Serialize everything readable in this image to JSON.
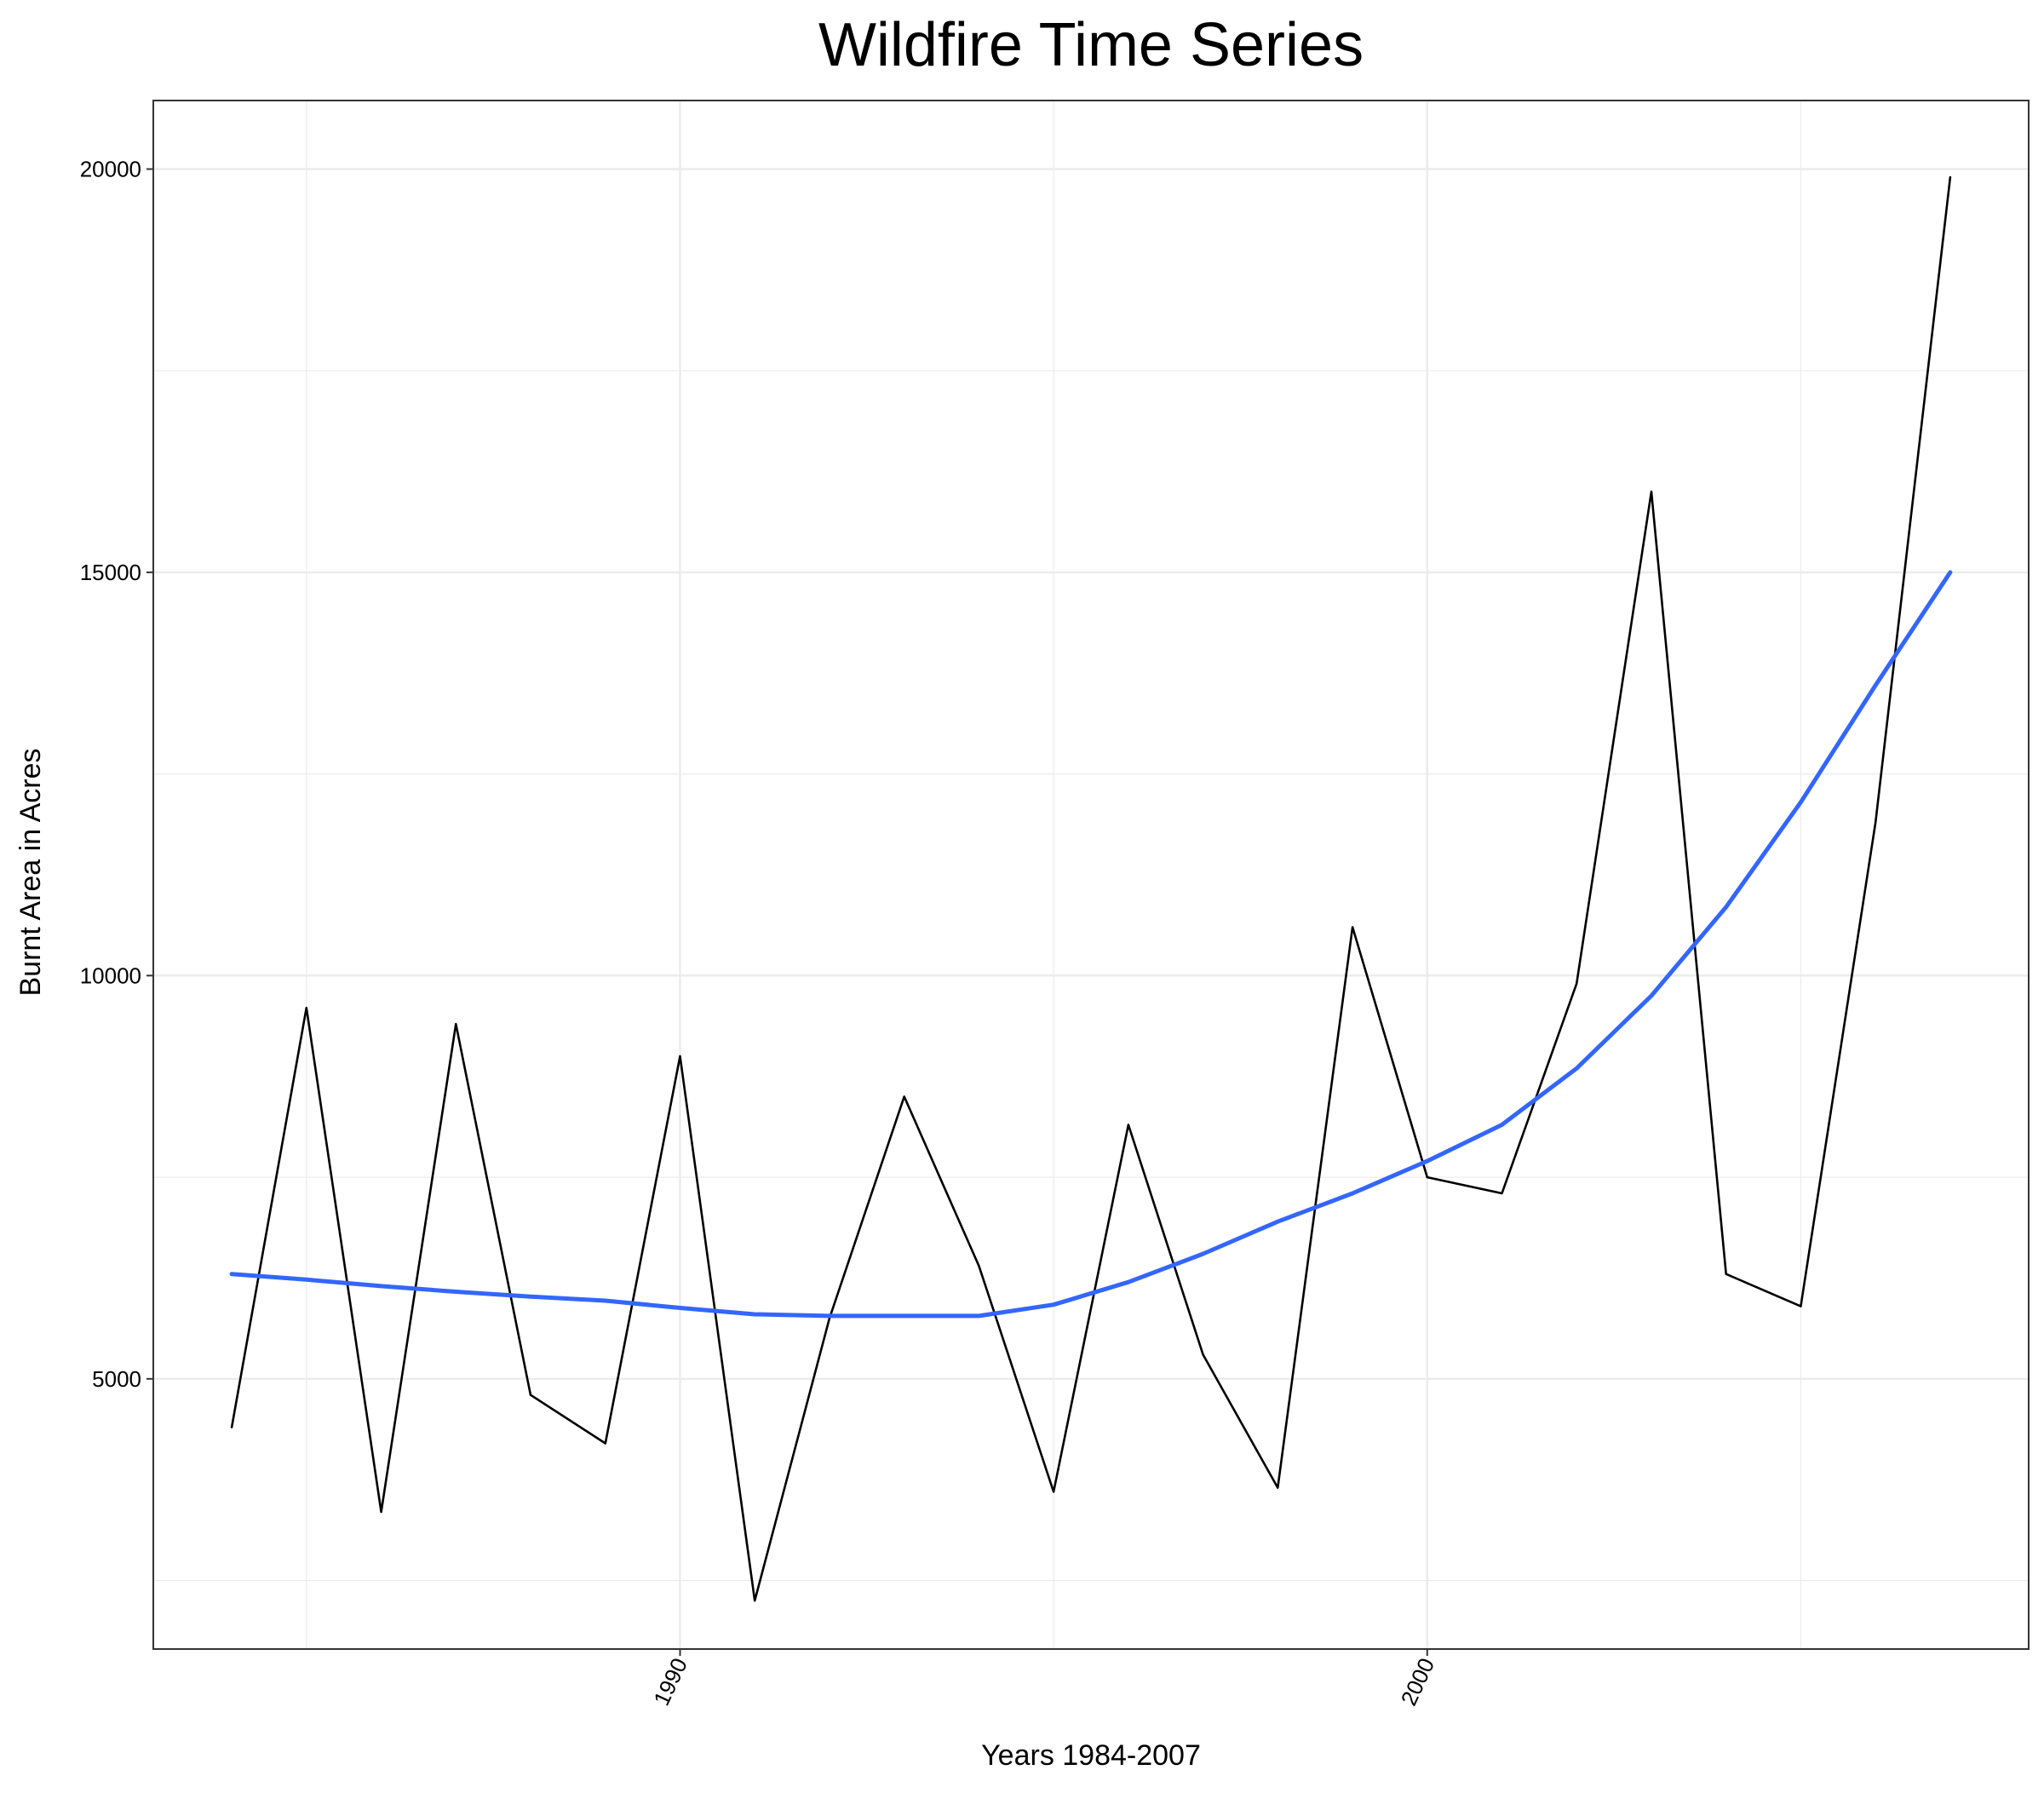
{
  "chart_data": {
    "type": "line",
    "title": "Wildfire Time Series",
    "xlabel": "Years 1984-2007",
    "ylabel": "Burnt Area in Acres",
    "xlim": [
      1982.95,
      2008.05
    ],
    "ylim": [
      1650,
      20850
    ],
    "xticks": [
      1990,
      2000
    ],
    "xtick_labels": [
      "1990",
      "2000"
    ],
    "yticks": [
      5000,
      10000,
      15000,
      20000
    ],
    "ytick_labels": [
      "5000",
      "10000",
      "15000",
      "20000"
    ],
    "grid": true,
    "legend": "none",
    "series": [
      {
        "color": "#000000",
        "x": [
          1984,
          1985,
          1986,
          1987,
          1988,
          1989,
          1990,
          1991,
          1992,
          1993,
          1994,
          1995,
          1996,
          1997,
          1998,
          1999,
          2000,
          2001,
          2002,
          2003,
          2004,
          2005,
          2006,
          2007
        ],
        "y": [
          4400,
          9600,
          3350,
          9400,
          4800,
          4200,
          9000,
          2250,
          5750,
          8500,
          6400,
          3600,
          8150,
          5300,
          3650,
          10600,
          7500,
          7300,
          9900,
          16000,
          6300,
          5900,
          11900,
          19900
        ]
      },
      {
        "color": "#3366ff",
        "x": [
          1984,
          1985,
          1986,
          1987,
          1988,
          1989,
          1990,
          1991,
          1992,
          1993,
          1994,
          1995,
          1996,
          1997,
          1998,
          1999,
          2000,
          2001,
          2002,
          2003,
          2004,
          2005,
          2006,
          2007
        ],
        "y": [
          6300,
          6230,
          6150,
          6080,
          6020,
          5970,
          5880,
          5800,
          5780,
          5780,
          5780,
          5920,
          6200,
          6550,
          6950,
          7300,
          7700,
          8150,
          8850,
          9750,
          10850,
          12150,
          13600,
          15000
        ]
      }
    ]
  }
}
